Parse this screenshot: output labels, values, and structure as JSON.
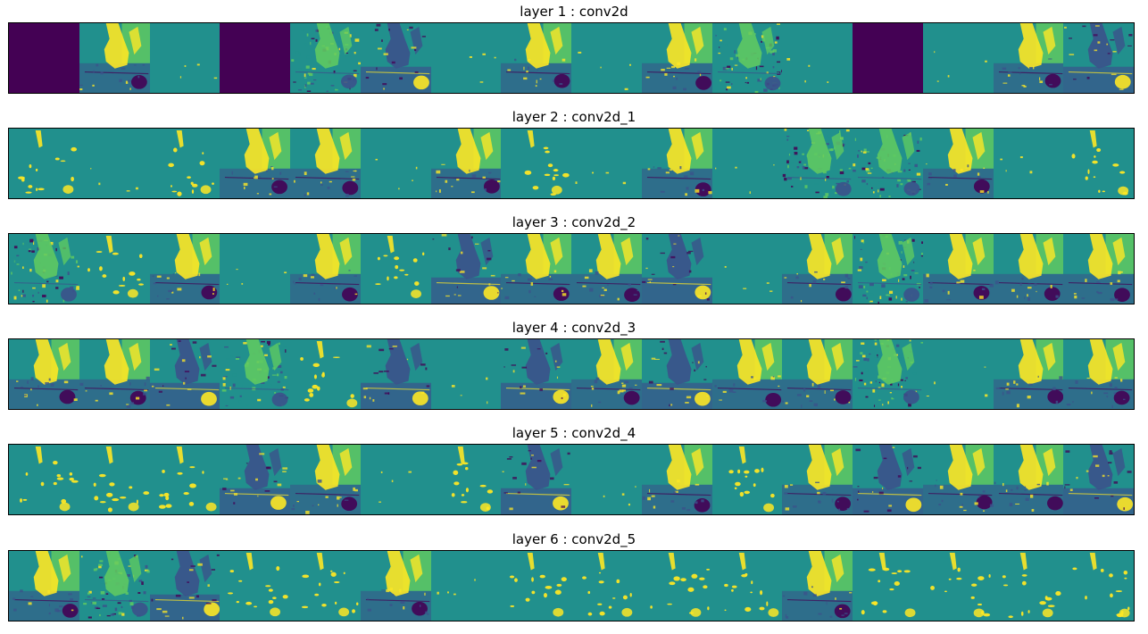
{
  "figure": {
    "colormap": [
      "#440154",
      "#3b528b",
      "#21908d",
      "#5ec962",
      "#fde725"
    ],
    "layers": [
      {
        "title": "layer 1 : conv2d",
        "maps": [
          "dead",
          "bright",
          "mostly-flat",
          "dead",
          "textured",
          "dark",
          "flat",
          "bright",
          "mostly-flat",
          "bright",
          "textured",
          "mostly-flat",
          "dead",
          "mostly-flat",
          "bright",
          "dark"
        ]
      },
      {
        "title": "layer 2 : conv2d_1",
        "maps": [
          "sparse",
          "mostly-flat",
          "sparse",
          "bright",
          "bright",
          "mostly-flat",
          "bright",
          "sparse",
          "mostly-flat",
          "bright",
          "mostly-flat",
          "textured",
          "textured",
          "bright",
          "mostly-flat",
          "sparse"
        ]
      },
      {
        "title": "layer 3 : conv2d_2",
        "maps": [
          "textured",
          "sparse",
          "bright",
          "mostly-flat",
          "bright",
          "sparse",
          "dark",
          "bright",
          "bright",
          "dark",
          "mostly-flat",
          "bright",
          "textured",
          "bright",
          "bright",
          "bright"
        ]
      },
      {
        "title": "layer 4 : conv2d_3",
        "maps": [
          "bright",
          "bright",
          "dark",
          "textured",
          "sparse",
          "dark",
          "mostly-flat",
          "dark",
          "bright",
          "dark",
          "bright",
          "bright",
          "textured",
          "mostly-flat",
          "bright",
          "bright"
        ]
      },
      {
        "title": "layer 5 : conv2d_4",
        "maps": [
          "sparse",
          "sparse",
          "sparse",
          "dark",
          "bright",
          "mostly-flat",
          "sparse",
          "dark",
          "mostly-flat",
          "bright",
          "sparse",
          "bright",
          "dark",
          "bright",
          "bright",
          "dark"
        ]
      },
      {
        "title": "layer 6 : conv2d_5",
        "maps": [
          "bright",
          "textured",
          "dark",
          "sparse",
          "sparse",
          "bright",
          "mostly-flat",
          "sparse",
          "sparse",
          "sparse",
          "sparse",
          "bright",
          "sparse",
          "sparse",
          "sparse",
          "sparse"
        ]
      }
    ]
  }
}
